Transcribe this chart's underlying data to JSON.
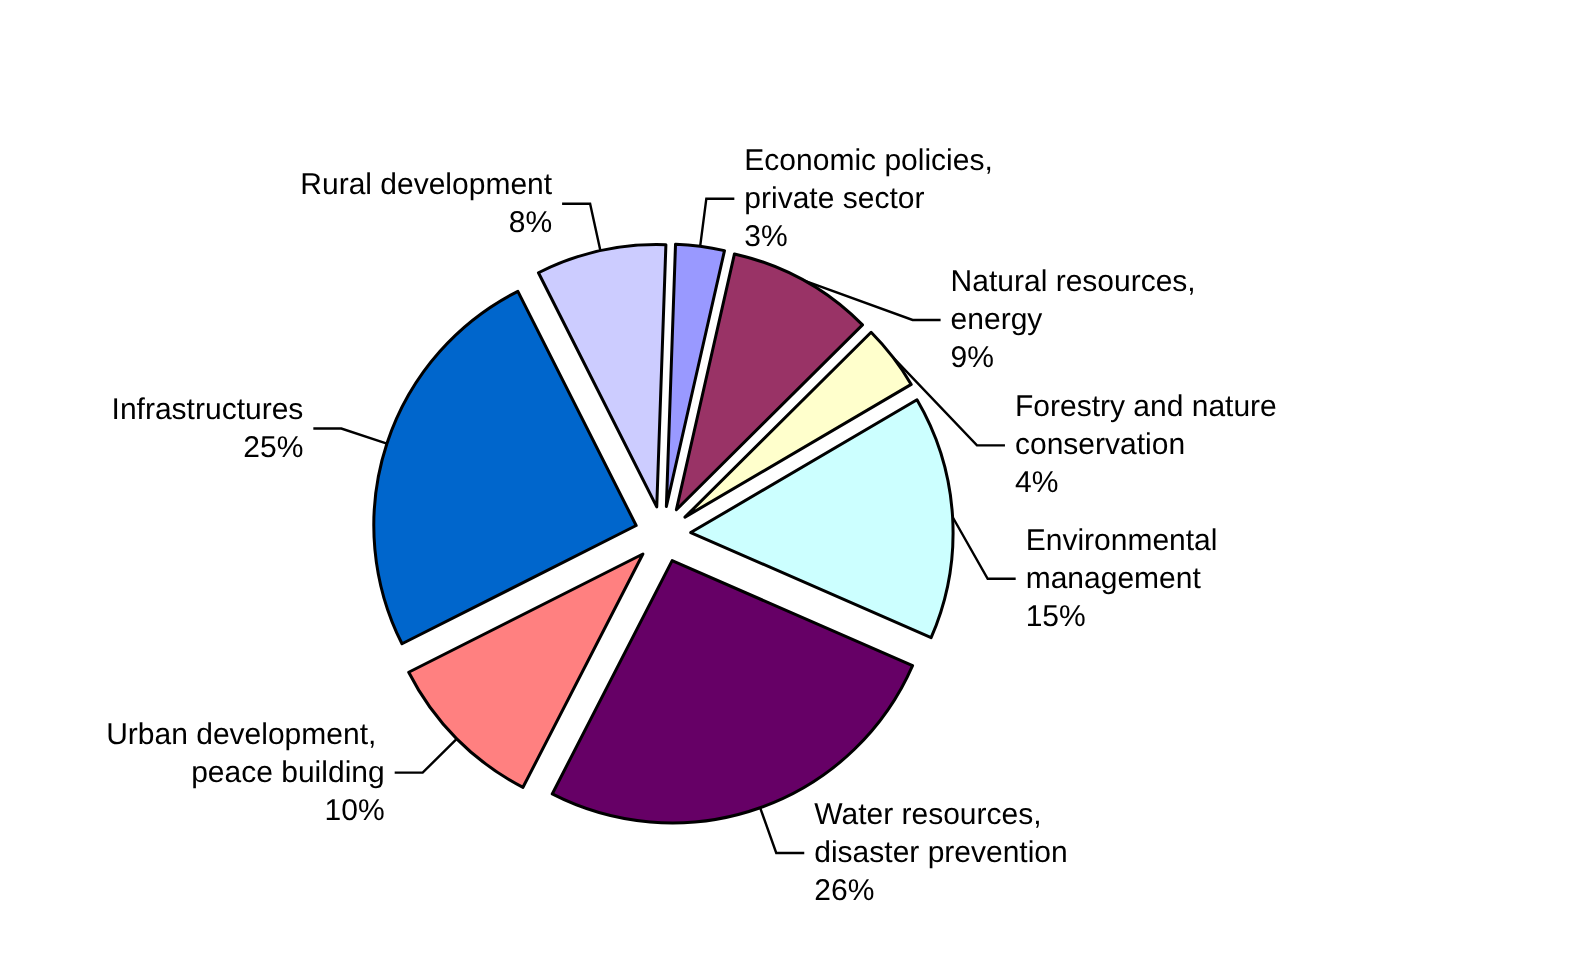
{
  "chart_data": {
    "type": "pie",
    "categories": [
      "Economic policies, private sector",
      "Natural resources, energy",
      "Forestry and nature conservation",
      "Environmental management",
      "Water resources, disaster prevention",
      "Urban development, peace building",
      "Infrastructures",
      "Rural development"
    ],
    "values": [
      3,
      9,
      4,
      15,
      26,
      10,
      25,
      8
    ],
    "value_labels": [
      "3%",
      "9%",
      "4%",
      "15%",
      "26%",
      "10%",
      "25%",
      "8%"
    ],
    "colors": [
      "#9999ff",
      "#993366",
      "#ffffcc",
      "#ccffff",
      "#660066",
      "#ff8080",
      "#0066cc",
      "#ccccff"
    ],
    "legend": false
  }
}
